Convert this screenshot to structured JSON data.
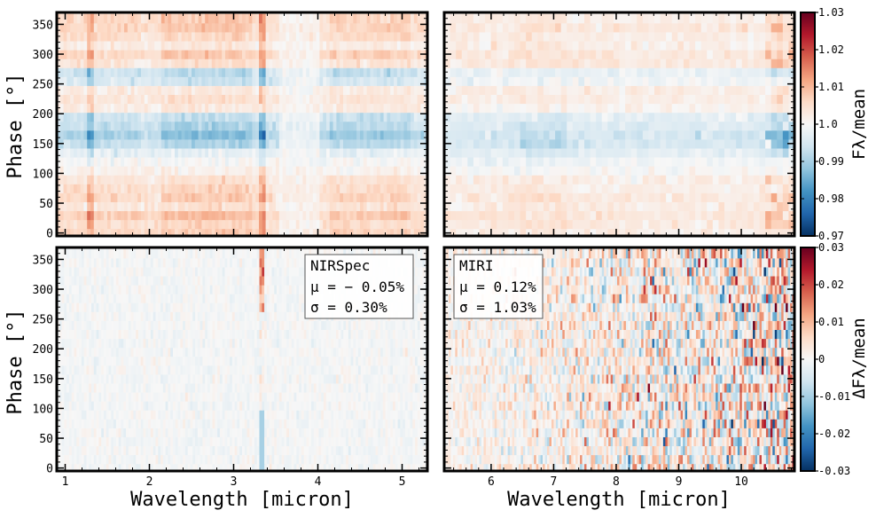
{
  "chart_data": [
    {
      "type": "heatmap",
      "panel": "top-left",
      "xlim": [
        0.9,
        5.3
      ],
      "ylim": [
        -5,
        370
      ],
      "xticks": [
        1,
        2,
        3,
        4,
        5
      ],
      "yticks": [
        0,
        50,
        100,
        150,
        200,
        250,
        300,
        350
      ],
      "ylabel": "Phase [°]",
      "xlabel": "",
      "colorbar_ref": 0,
      "phase_bins": [
        0,
        15,
        30,
        45,
        60,
        75,
        90,
        105,
        120,
        135,
        150,
        165,
        180,
        195,
        210,
        225,
        240,
        255,
        270,
        285,
        300,
        315,
        330,
        345,
        360
      ],
      "row_means": [
        0.005,
        0.004,
        0.006,
        0.003,
        0.005,
        0.004,
        0.003,
        0.001,
        0.0,
        -0.002,
        -0.006,
        -0.008,
        -0.006,
        -0.005,
        0.002,
        0.003,
        0.002,
        -0.004,
        -0.005,
        0.003,
        0.005,
        0.002,
        0.004,
        0.005,
        0.005
      ],
      "features": [
        {
          "wavelength": 1.27,
          "amplitude": 0.006,
          "note": "strong red streak"
        },
        {
          "wavelength": 3.32,
          "amplitude": 0.007,
          "note": "thin vertical line"
        }
      ]
    },
    {
      "type": "heatmap",
      "panel": "top-right",
      "xlim": [
        5.25,
        10.85
      ],
      "ylim": [
        -5,
        370
      ],
      "xticks": [
        6,
        7,
        8,
        9,
        10
      ],
      "yticks": [
        0,
        50,
        100,
        150,
        200,
        250,
        300,
        350
      ],
      "xlabel": "",
      "colorbar_ref": 0,
      "phase_bins": [
        0,
        15,
        30,
        45,
        60,
        75,
        90,
        105,
        120,
        135,
        150,
        165,
        180,
        195,
        210,
        225,
        240,
        255,
        270,
        285,
        300,
        315,
        330,
        345,
        360
      ],
      "row_means": [
        0.002,
        0.003,
        0.003,
        0.002,
        0.003,
        0.002,
        0.002,
        0.0,
        -0.001,
        -0.003,
        -0.005,
        -0.005,
        -0.004,
        -0.003,
        0.001,
        0.002,
        0.002,
        -0.001,
        -0.002,
        0.003,
        0.003,
        0.002,
        0.002,
        0.003,
        0.002
      ]
    },
    {
      "type": "heatmap",
      "panel": "bottom-left",
      "xlim": [
        0.9,
        5.3
      ],
      "ylim": [
        -5,
        370
      ],
      "xticks": [
        1,
        2,
        3,
        4,
        5
      ],
      "yticks": [
        0,
        50,
        100,
        150,
        200,
        250,
        300,
        350
      ],
      "xlabel": "Wavelength [micron]",
      "ylabel": "Phase [°]",
      "colorbar_ref": 1,
      "annotation": {
        "instrument": "NIRSpec",
        "mu": "μ = − 0.05%",
        "sigma": "σ = 0.30%"
      },
      "mean_pct": -0.05,
      "std_pct": 0.3
    },
    {
      "type": "heatmap",
      "panel": "bottom-right",
      "xlim": [
        5.25,
        10.85
      ],
      "ylim": [
        -5,
        370
      ],
      "xticks": [
        6,
        7,
        8,
        9,
        10
      ],
      "yticks": [
        0,
        50,
        100,
        150,
        200,
        250,
        300,
        350
      ],
      "xlabel": "Wavelength [micron]",
      "colorbar_ref": 1,
      "annotation": {
        "instrument": "MIRI",
        "mu": "μ = 0.12%",
        "sigma": "σ = 1.03%"
      },
      "mean_pct": 0.12,
      "std_pct": 1.03
    }
  ],
  "colorbars": [
    {
      "label": "Fλ/mean",
      "range": [
        0.97,
        1.03
      ],
      "ticks": [
        "1.03",
        "1.02",
        "1.01",
        "1.0",
        "0.99",
        "0.98",
        "0.97"
      ],
      "colormap": "RdBu_r"
    },
    {
      "label": "ΔFλ/mean",
      "range": [
        -0.03,
        0.03
      ],
      "ticks": [
        "0.03",
        "0.02",
        "0.01",
        "0",
        "-0.01",
        "-0.02",
        "-0.03"
      ],
      "colormap": "RdBu_r"
    }
  ],
  "colors": {
    "low": "#053061",
    "mid": "#f7f7f7",
    "high": "#67001f"
  }
}
